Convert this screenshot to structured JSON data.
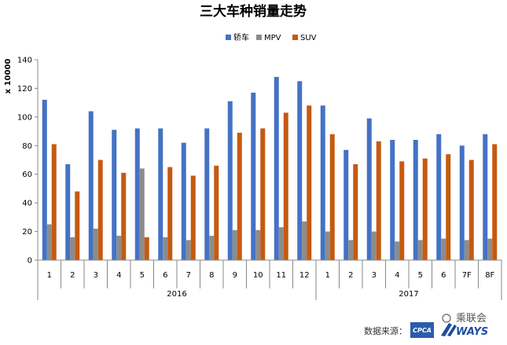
{
  "chart_data": {
    "type": "bar",
    "title": "三大车种销量走势",
    "ylabel": "x 10000",
    "xlabel": "",
    "ylim": [
      0,
      140
    ],
    "yticks": [
      0,
      20,
      40,
      60,
      80,
      100,
      120,
      140
    ],
    "grid": false,
    "legend_position": "top",
    "categories": [
      "1",
      "2",
      "3",
      "4",
      "5",
      "6",
      "7",
      "8",
      "9",
      "10",
      "11",
      "12",
      "1",
      "2",
      "3",
      "4",
      "5",
      "6",
      "7F",
      "8F"
    ],
    "groups": [
      {
        "label": "2016",
        "count": 12
      },
      {
        "label": "2017",
        "count": 8
      }
    ],
    "series": [
      {
        "name": "轿车",
        "color": "#4472C4",
        "values": [
          112,
          67,
          104,
          91,
          92,
          92,
          82,
          92,
          111,
          117,
          128,
          125,
          108,
          77,
          99,
          84,
          84,
          88,
          80,
          88
        ]
      },
      {
        "name": "MPV",
        "color": "#8C8C8C",
        "values": [
          25,
          16,
          22,
          17,
          64,
          16,
          14,
          17,
          21,
          21,
          23,
          27,
          20,
          14,
          20,
          13,
          14,
          15,
          14,
          15
        ]
      },
      {
        "name": "SUV",
        "color": "#C55A11",
        "values": [
          81,
          48,
          70,
          61,
          16,
          65,
          59,
          66,
          89,
          92,
          103,
          108,
          88,
          67,
          83,
          69,
          71,
          74,
          70,
          81
        ]
      }
    ]
  },
  "watermark": {
    "source_label": "数据来源：",
    "logo1_text": "CPCA",
    "logo2_text": "WAYS",
    "brand_text": "乘联会"
  }
}
